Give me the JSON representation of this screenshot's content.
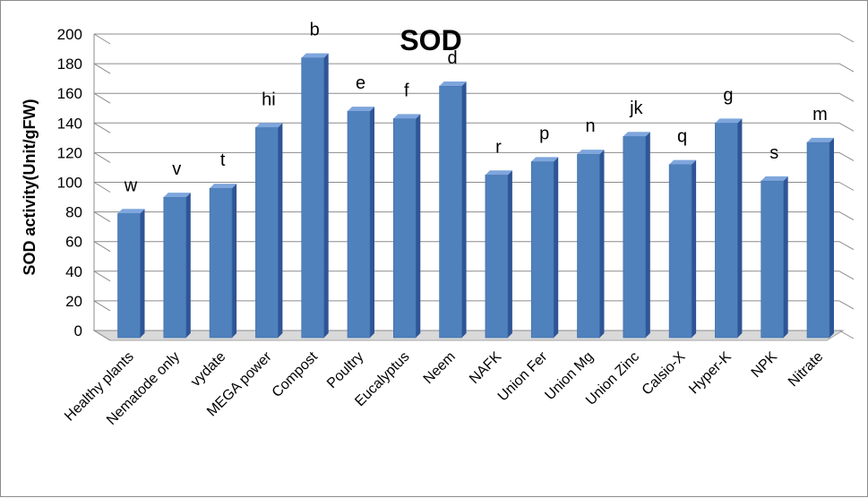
{
  "chart_data": {
    "type": "bar",
    "title": "SOD",
    "xlabel": "",
    "ylabel": "SOD activity(Unit/gFW)",
    "ylim": [
      0,
      200
    ],
    "yticks": [
      0,
      20,
      40,
      60,
      80,
      100,
      120,
      140,
      160,
      180,
      200
    ],
    "grid": true,
    "style": "3d-column",
    "colors": {
      "bar_front": "#4f81bd",
      "bar_side": "#2f5597",
      "bar_top": "#7ea6dc",
      "grid": "#8c8c8c",
      "floor": "#d9d9d9"
    },
    "categories": [
      "Healthy plants",
      "Nematode only",
      "vydate",
      "MEGA power",
      "Compost",
      "Poultry",
      "Eucalyptus",
      "Neem",
      "NAFK",
      "Union Fer",
      "Union Mg",
      "Union Zinc",
      "Calsio-X",
      "Hyper-K",
      "NPK",
      "Nitrate"
    ],
    "values": [
      82,
      93,
      99,
      140,
      187,
      151,
      146,
      168,
      108,
      117,
      122,
      134,
      115,
      143,
      104,
      130
    ],
    "data_labels": [
      "w",
      "v",
      "t",
      "hi",
      "b",
      "e",
      "f",
      "d",
      "r",
      "p",
      "n",
      "jk",
      "q",
      "g",
      "s",
      "m"
    ]
  }
}
